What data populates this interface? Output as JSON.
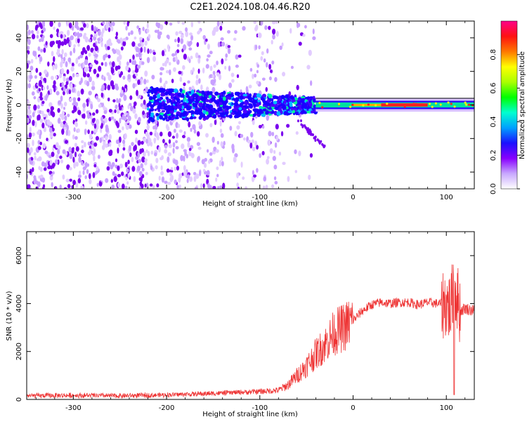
{
  "title": "C2E1.2024.108.04.46.R20",
  "colors": {
    "axis": "#000000",
    "snr_line": "#ee3333",
    "spectrogram_core": "#1a00ff",
    "spectrogram_scatter": "#7a00ee",
    "colorbar_stops": [
      "#ffffff",
      "#c8a8ff",
      "#8800ff",
      "#1a10ff",
      "#00a0ff",
      "#00ffd0",
      "#00ff00",
      "#aaff00",
      "#ffff00",
      "#ff7700",
      "#ff1111",
      "#ff0088"
    ]
  },
  "chart_data": [
    {
      "type": "heatmap",
      "xlabel": "Height of straight line (km)",
      "ylabel": "Frequency (Hz)",
      "xlim": [
        -350,
        130
      ],
      "ylim": [
        -50,
        50
      ],
      "xticks": [
        -300,
        -200,
        -100,
        0,
        100
      ],
      "yticks": [
        -40,
        -20,
        0,
        20,
        40
      ],
      "x_tick_labels": [
        "-300",
        "-200",
        "-100",
        "0",
        "100"
      ],
      "y_tick_labels": [
        "-40",
        "-20",
        "0",
        "20",
        "40"
      ],
      "colorbar": {
        "label": "Normalized spectral amplitude",
        "range": [
          0,
          1
        ],
        "ticks": [
          0.0,
          0.2,
          0.4,
          0.6,
          0.8
        ],
        "tick_labels": [
          "0.0",
          "0.2",
          "0.4",
          "0.6",
          "0.8"
        ],
        "colormap": "rainbow"
      },
      "regions": [
        {
          "x_range": [
            -350,
            -220
          ],
          "frequency_range": [
            -50,
            50
          ],
          "level": 0.1
        },
        {
          "x_range": [
            -220,
            -80
          ],
          "frequency_range": [
            -50,
            50
          ],
          "level": 0.05
        },
        {
          "x_range": [
            -220,
            -40
          ],
          "frequency_range": [
            -8,
            8
          ],
          "level": 0.25
        },
        {
          "x_range": [
            -40,
            130
          ],
          "frequency_range": [
            -2,
            2
          ],
          "level": 0.9
        }
      ]
    },
    {
      "type": "line",
      "xlabel": "Height of straight line (km)",
      "ylabel": "SNR (10 * v/v)",
      "xlim": [
        -350,
        130
      ],
      "ylim": [
        0,
        7000
      ],
      "xticks": [
        -300,
        -200,
        -100,
        0,
        100
      ],
      "yticks": [
        0,
        2000,
        4000,
        6000
      ],
      "x_tick_labels": [
        "-300",
        "-200",
        "-100",
        "0",
        "100"
      ],
      "y_tick_labels": [
        "0",
        "2000",
        "4000",
        "6000"
      ],
      "series": [
        {
          "x": [
            -350,
            -300,
            -250,
            -200,
            -150,
            -120,
            -100,
            -80,
            -70,
            -60,
            -50,
            -40,
            -30,
            -20,
            -10,
            0,
            10,
            20,
            30,
            40,
            50,
            60,
            70,
            80,
            90,
            100,
            105,
            108,
            110,
            115,
            120,
            130
          ],
          "y": [
            150,
            170,
            150,
            190,
            250,
            300,
            330,
            380,
            600,
            1000,
            1400,
            1900,
            2300,
            2800,
            3000,
            3300,
            3700,
            3950,
            4050,
            4000,
            4050,
            4050,
            3950,
            4050,
            4000,
            4000,
            3800,
            5000,
            4500,
            3700,
            3800,
            3700
          ]
        }
      ]
    }
  ]
}
